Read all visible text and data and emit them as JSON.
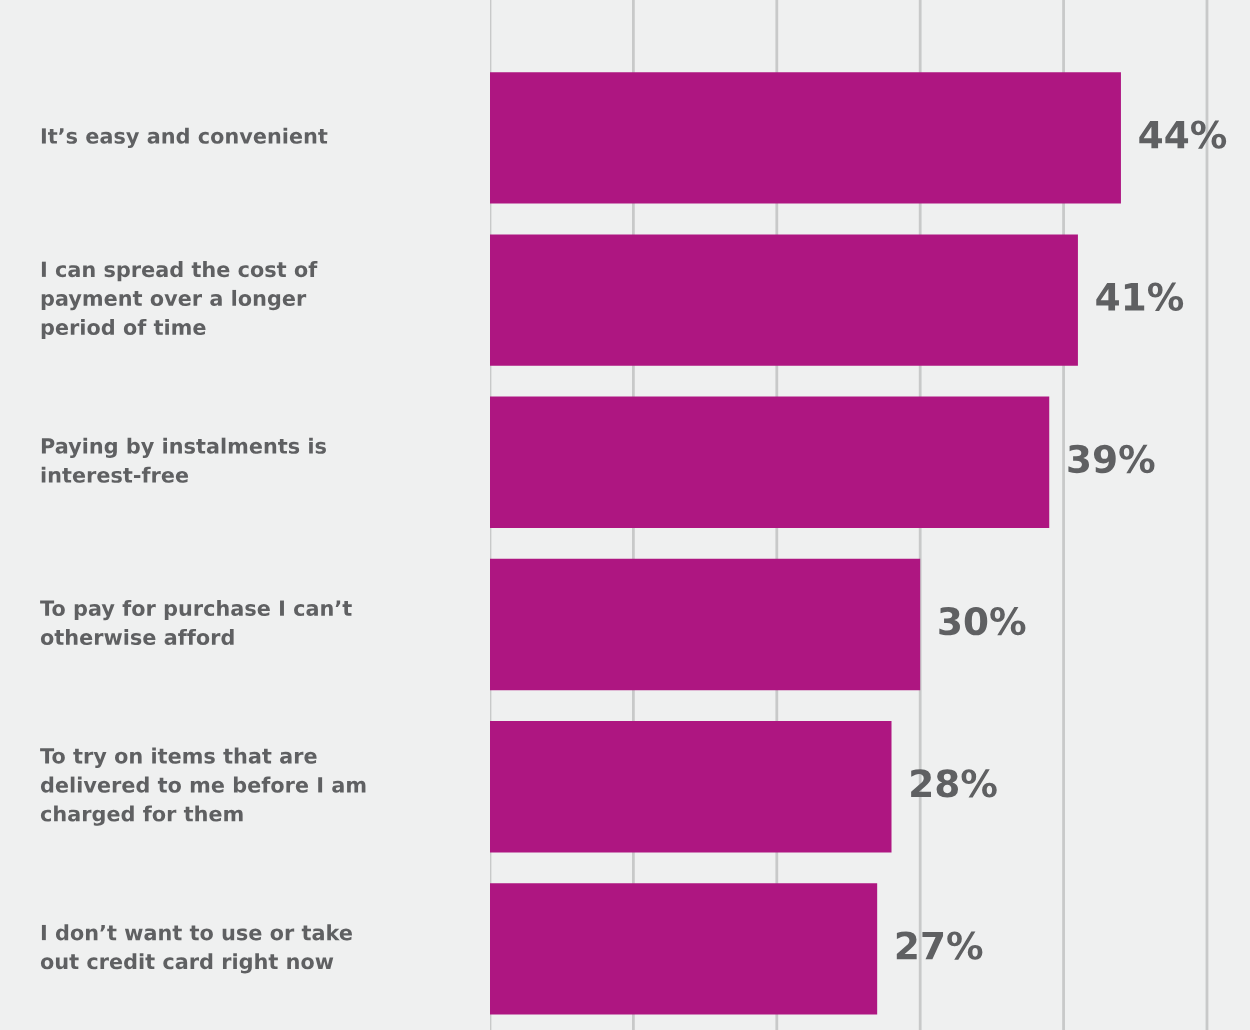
{
  "chart_data": {
    "type": "bar",
    "orientation": "horizontal",
    "categories": [
      "It’s easy and convenient",
      "I can spread the cost of\npayment over a longer\nperiod of time",
      "Paying by instalments is\ninterest-free",
      "To pay for purchase I can’t\notherwise afford",
      "To try on items that are\ndelivered to me before I am\ncharged for them",
      "I don’t want to use or take\nout credit card right now"
    ],
    "values": [
      44,
      41,
      39,
      30,
      28,
      27
    ],
    "value_labels": [
      "44%",
      "41%",
      "39%",
      "30%",
      "28%",
      "27%"
    ],
    "color": "#ae1681",
    "xlim": [
      0,
      53
    ],
    "xticks": [
      {
        "value": 0,
        "label": null
      },
      {
        "value": 10,
        "label": null
      },
      {
        "value": 20,
        "label": null
      },
      {
        "value": 30,
        "label": null
      },
      {
        "value": 40,
        "label": null
      },
      {
        "value": 50,
        "label": null
      }
    ],
    "grid": "x"
  }
}
